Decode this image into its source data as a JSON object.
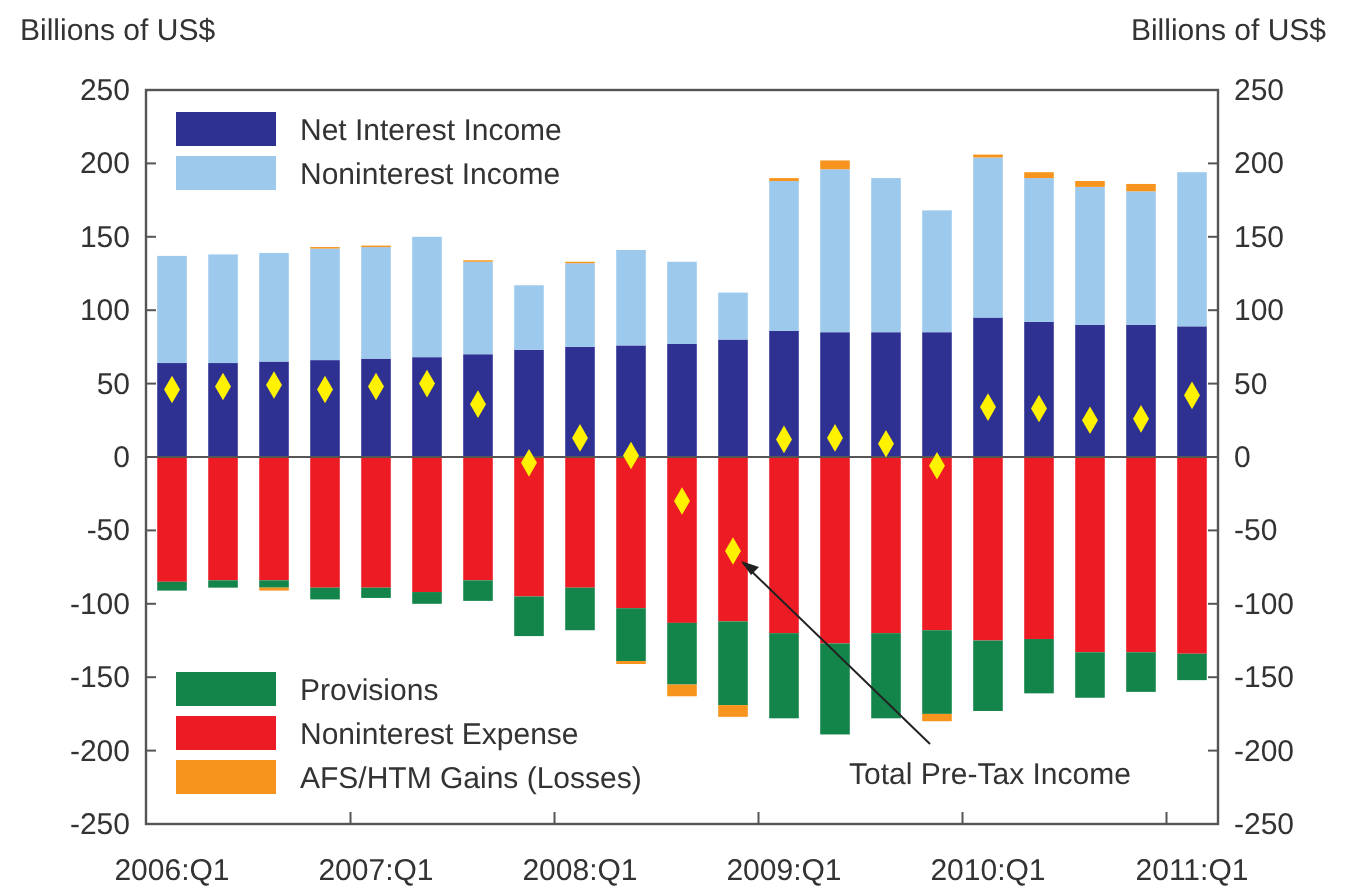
{
  "chart_data": {
    "type": "bar",
    "stacked": true,
    "ylabel": "Billions of US$",
    "y2label": "Billions of US$",
    "categories": [
      "2006:Q1",
      null,
      null,
      null,
      "2007:Q1",
      null,
      null,
      null,
      "2008:Q1",
      null,
      null,
      null,
      "2009:Q1",
      null,
      null,
      null,
      "2010:Q1",
      null,
      null,
      null,
      "2011:Q1"
    ],
    "ylim": [
      -250,
      250
    ],
    "yticks": [
      -250,
      -200,
      -150,
      -100,
      -50,
      0,
      50,
      100,
      150,
      200,
      250
    ],
    "y2lim": [
      -250,
      250
    ],
    "y2ticks": [
      -250,
      -200,
      -150,
      -100,
      -50,
      0,
      50,
      100,
      150,
      200,
      250
    ],
    "legend": "left",
    "series": [
      {
        "name": "Net Interest Income",
        "color": "#2e3192",
        "values": [
          64,
          64,
          65,
          66,
          67,
          68,
          70,
          73,
          75,
          76,
          77,
          80,
          86,
          85,
          85,
          85,
          95,
          92,
          90,
          90,
          89
        ]
      },
      {
        "name": "Noninterest Income",
        "color": "#9dc9ec",
        "values": [
          73,
          74,
          74,
          76,
          76,
          82,
          63,
          44,
          57,
          65,
          56,
          32,
          102,
          111,
          105,
          83,
          109,
          98,
          94,
          91,
          105
        ]
      },
      {
        "name": "Provisions",
        "color": "#13844a",
        "values": [
          -6,
          -5,
          -5,
          -8,
          -7,
          -8,
          -14,
          -27,
          -29,
          -36,
          -42,
          -57,
          -58,
          -62,
          -58,
          -57,
          -48,
          -37,
          -31,
          -27,
          -18
        ]
      },
      {
        "name": "Noninterest Expense",
        "color": "#ed1c24",
        "values": [
          -85,
          -84,
          -84,
          -89,
          -89,
          -92,
          -84,
          -95,
          -89,
          -103,
          -113,
          -112,
          -120,
          -127,
          -120,
          -118,
          -125,
          -124,
          -133,
          -133,
          -134
        ]
      },
      {
        "name": "AFS/HTM Gains (Losses)",
        "color": "#f7941d",
        "values": [
          0,
          0,
          -2,
          1,
          1,
          0,
          1,
          0,
          1,
          -2,
          -8,
          -8,
          2,
          6,
          0,
          -5,
          2,
          4,
          4,
          5,
          0
        ]
      },
      {
        "name": "Total Pre-Tax Income",
        "type": "scatter",
        "marker": "diamond",
        "color": "#fff200",
        "values": [
          46,
          48,
          49,
          46,
          48,
          50,
          36,
          -4,
          13,
          1,
          -30,
          -64,
          12,
          13,
          9,
          -6,
          34,
          33,
          25,
          26,
          42
        ]
      }
    ]
  }
}
